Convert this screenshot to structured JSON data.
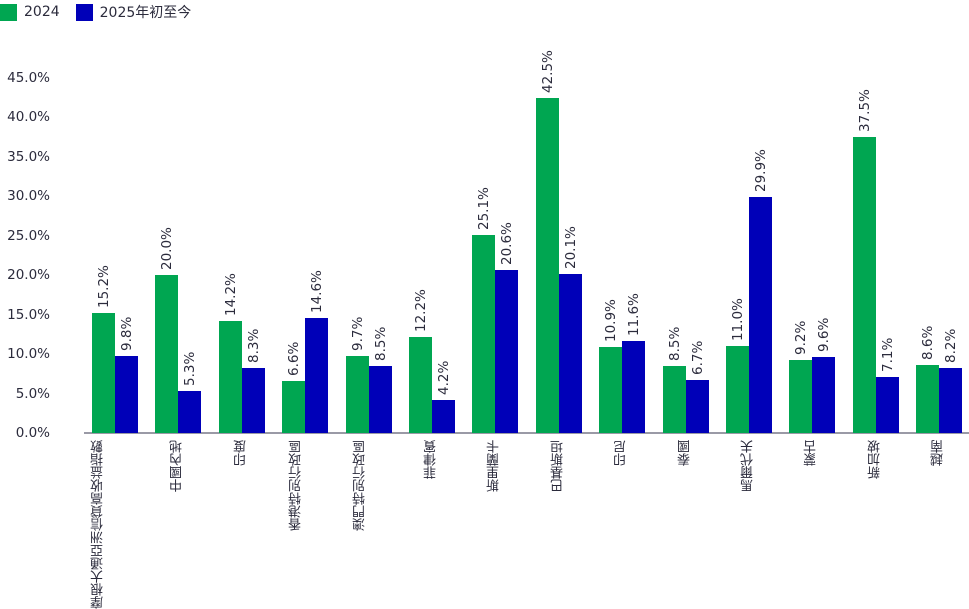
{
  "legend": {
    "items": [
      {
        "label": "2024",
        "color": "#00a651"
      },
      {
        "label": "2025年初至今",
        "color": "#0000b8"
      }
    ]
  },
  "y_axis": {
    "ticks": [
      "0.0%",
      "5.0%",
      "10.0%",
      "15.0%",
      "20.0%",
      "25.0%",
      "30.0%",
      "35.0%",
      "40.0%",
      "45.0%"
    ]
  },
  "categories": [
    {
      "lines": [
        "摩根大通亞洲",
        "信貸高收益",
        "指數"
      ]
    },
    {
      "lines": [
        "中國內地"
      ]
    },
    {
      "lines": [
        "印度"
      ]
    },
    {
      "lines": [
        "香港",
        "特別行政區"
      ]
    },
    {
      "lines": [
        "澳門",
        "特別行政區"
      ]
    },
    {
      "lines": [
        "菲律賓"
      ]
    },
    {
      "lines": [
        "斯里蘭卡"
      ]
    },
    {
      "lines": [
        "巴基斯坦"
      ]
    },
    {
      "lines": [
        "印尼"
      ]
    },
    {
      "lines": [
        "泰國"
      ]
    },
    {
      "lines": [
        "馬爾代夫"
      ]
    },
    {
      "lines": [
        "蒙古"
      ]
    },
    {
      "lines": [
        "新加坡"
      ]
    },
    {
      "lines": [
        "越南"
      ]
    }
  ],
  "chart_data": {
    "type": "bar",
    "title": "",
    "xlabel": "",
    "ylabel": "",
    "ylim": [
      0,
      45
    ],
    "grid": false,
    "legend_position": "top-left",
    "categories": [
      "摩根大通亞洲信貸高收益指數",
      "中國內地",
      "印度",
      "香港特別行政區",
      "澳門特別行政區",
      "菲律賓",
      "斯里蘭卡",
      "巴基斯坦",
      "印尼",
      "泰國",
      "馬爾代夫",
      "蒙古",
      "新加坡",
      "越南"
    ],
    "series": [
      {
        "name": "2024",
        "color": "#00a651",
        "values": [
          15.2,
          20.0,
          14.2,
          6.6,
          9.7,
          12.2,
          25.1,
          42.5,
          10.9,
          8.5,
          11.0,
          9.2,
          37.5,
          8.6
        ],
        "labels": [
          "15.2%",
          "20.0%",
          "14.2%",
          "6.6%",
          "9.7%",
          "12.2%",
          "25.1%",
          "42.5%",
          "10.9%",
          "8.5%",
          "11.0%",
          "9.2%",
          "37.5%",
          "8.6%"
        ]
      },
      {
        "name": "2025年初至今",
        "color": "#0000b8",
        "values": [
          9.8,
          5.3,
          8.3,
          14.6,
          8.5,
          4.2,
          20.6,
          20.1,
          11.6,
          6.7,
          29.9,
          9.6,
          7.1,
          8.2
        ],
        "labels": [
          "9.8%",
          "5.3%",
          "8.3%",
          "14.6%",
          "8.5%",
          "4.2%",
          "20.6%",
          "20.1%",
          "11.6%",
          "6.7%",
          "29.9%",
          "9.6%",
          "7.1%",
          "8.2%"
        ]
      }
    ]
  }
}
